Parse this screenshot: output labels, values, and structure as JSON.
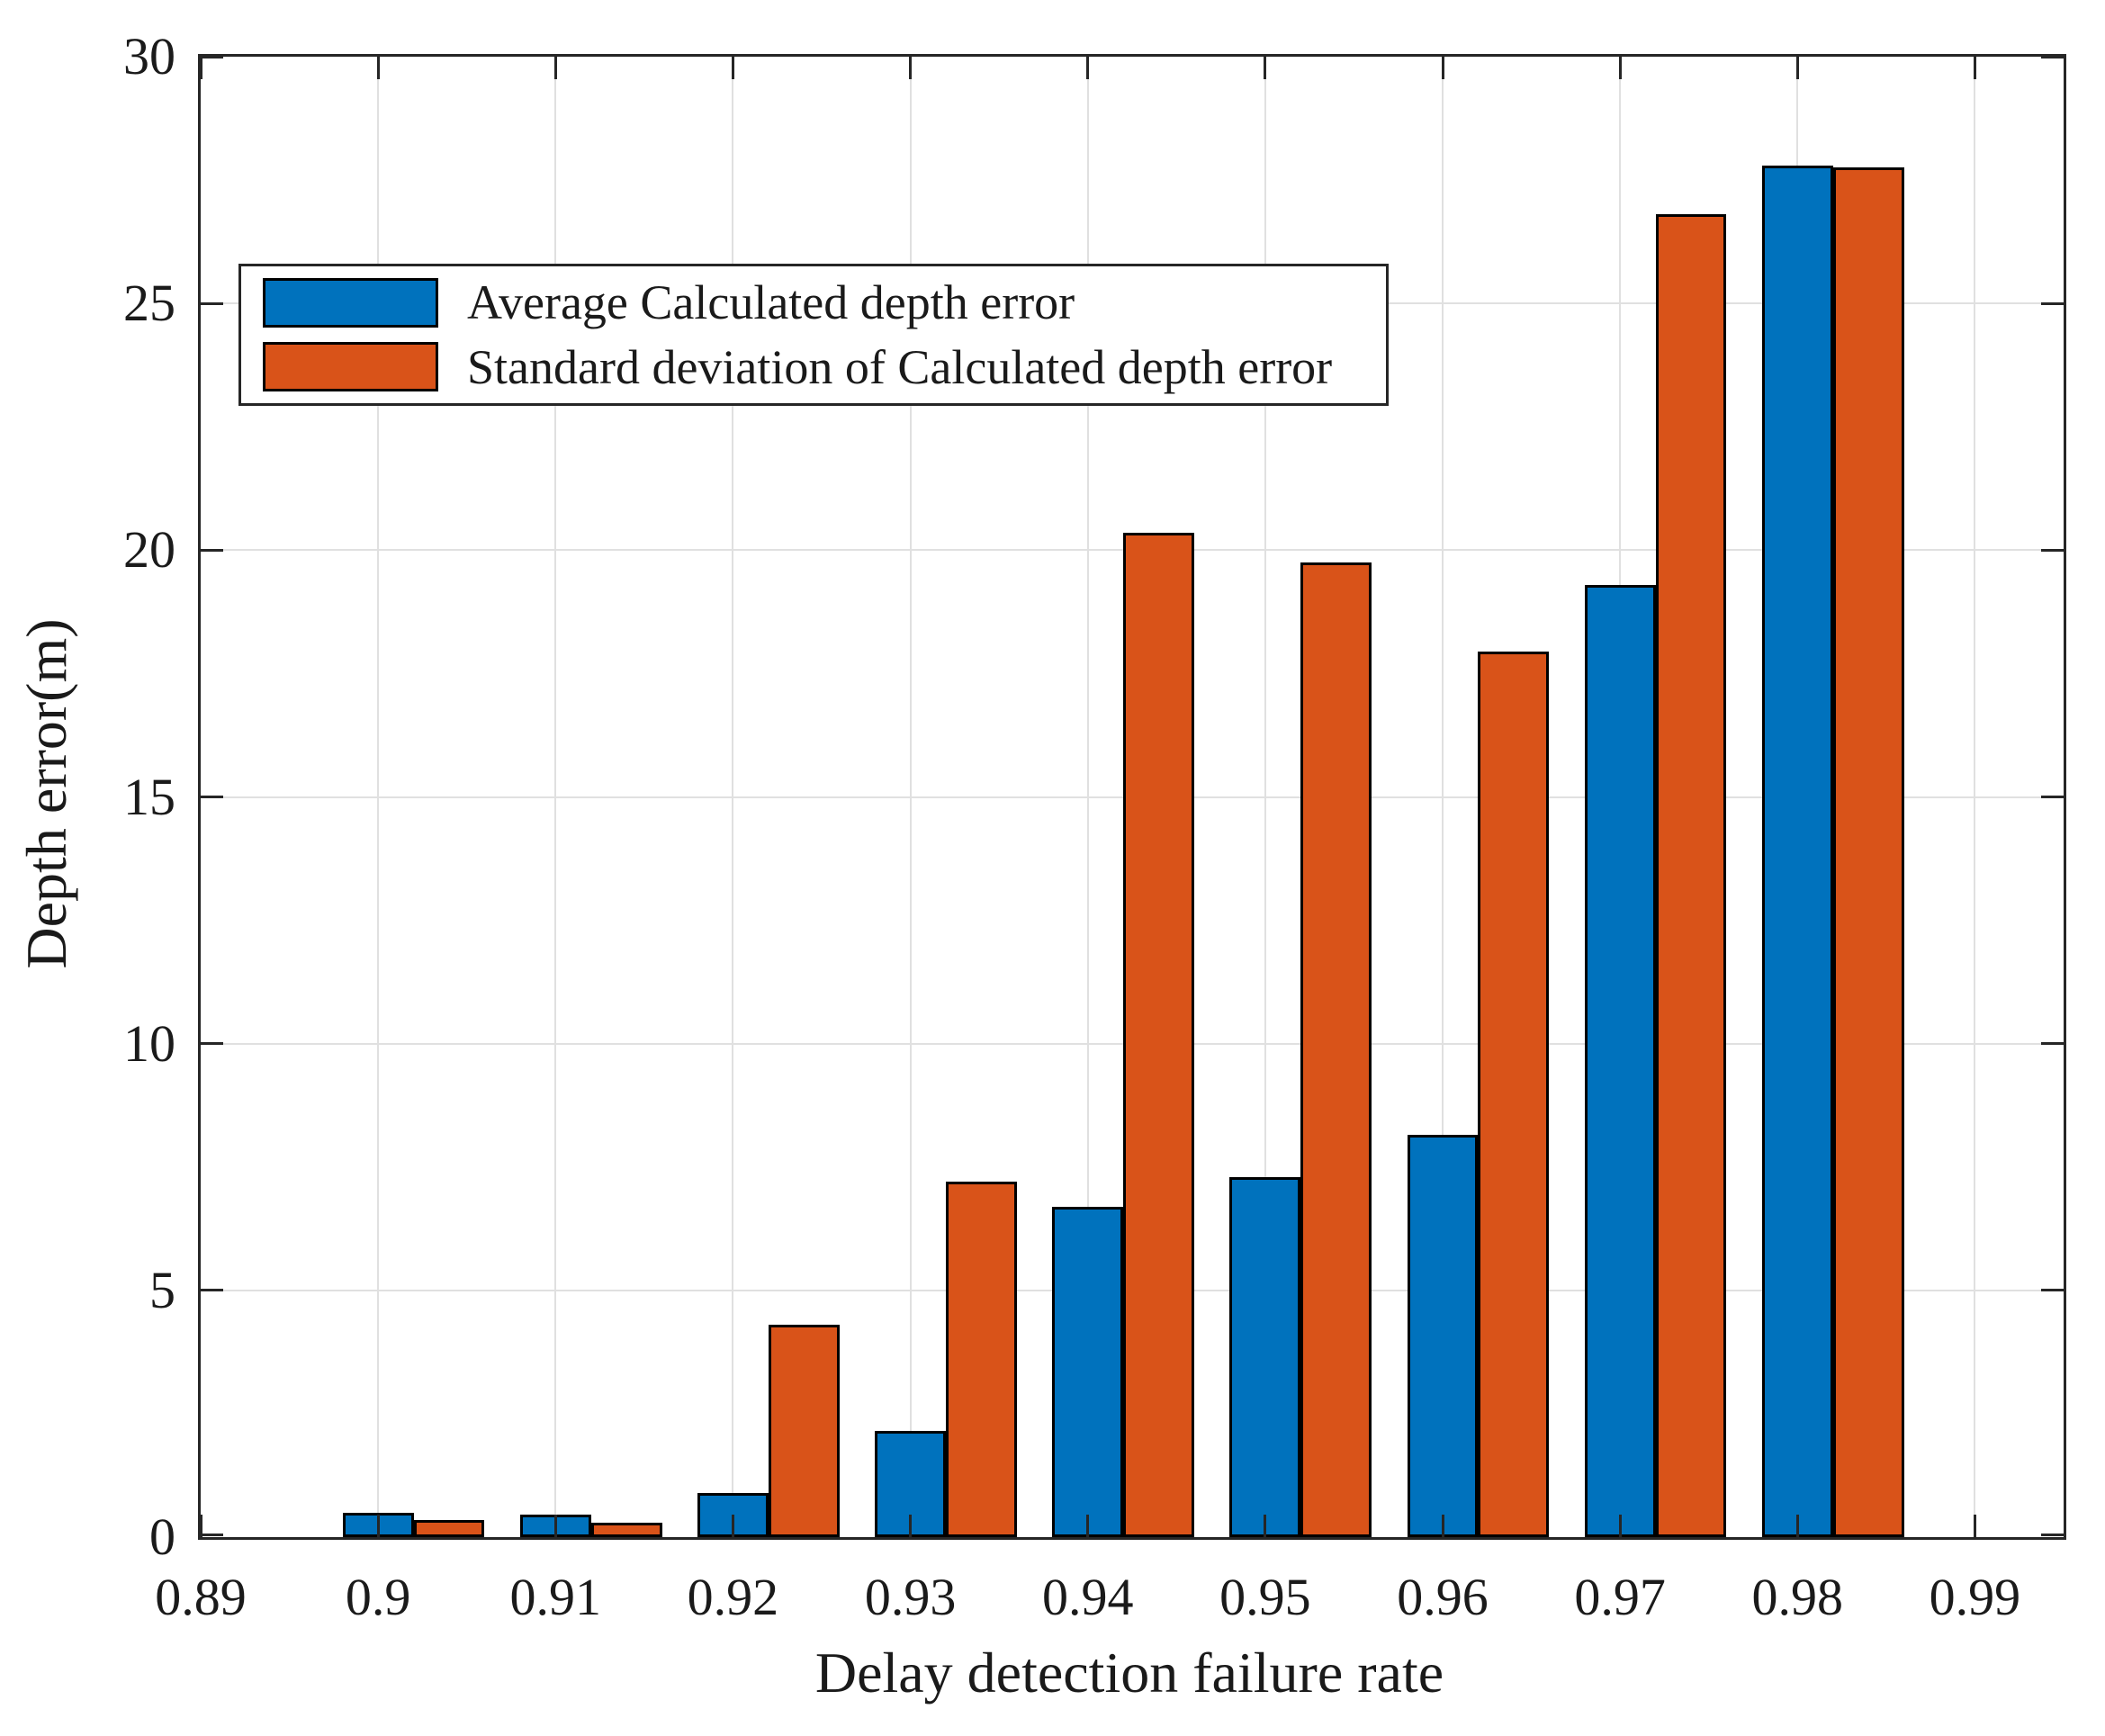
{
  "chart_data": {
    "type": "bar",
    "title": "",
    "xlabel": "Delay detection failure rate",
    "ylabel": "Depth error(m)",
    "categories": [
      0.9,
      0.91,
      0.92,
      0.93,
      0.94,
      0.95,
      0.96,
      0.97,
      0.98
    ],
    "series": [
      {
        "name": "Average Calculated depth error",
        "color": "#0072BD",
        "values": [
          0.5,
          0.45,
          0.9,
          2.15,
          6.7,
          7.3,
          8.15,
          19.3,
          27.8
        ]
      },
      {
        "name": "Standard deviation of Calculated depth error",
        "color": "#D95319",
        "values": [
          0.35,
          0.3,
          4.3,
          7.2,
          20.35,
          19.75,
          17.95,
          26.8,
          27.75
        ]
      }
    ],
    "axes": {
      "xlim": [
        0.89,
        0.995
      ],
      "ylim": [
        0,
        30
      ],
      "xticks": {
        "values": [
          0.89,
          0.9,
          0.91,
          0.92,
          0.93,
          0.94,
          0.95,
          0.96,
          0.97,
          0.98,
          0.99
        ],
        "labels": [
          "0.89",
          "0.9",
          "0.91",
          "0.92",
          "0.93",
          "0.94",
          "0.95",
          "0.96",
          "0.97",
          "0.98",
          "0.99"
        ]
      },
      "yticks": {
        "values": [
          0,
          5,
          10,
          15,
          20,
          25,
          30
        ],
        "labels": [
          "0",
          "5",
          "10",
          "15",
          "20",
          "25",
          "30"
        ]
      },
      "grid": true,
      "bar_width": 0.004,
      "edge_color": "#000000",
      "grid_color": "#e0e0e0",
      "axis_color": "#262626",
      "text_color": "#1a1a1a"
    },
    "legend": {
      "position": "upper-left-inside",
      "entries": [
        "Average Calculated depth error",
        "Standard deviation of Calculated depth error"
      ]
    }
  }
}
